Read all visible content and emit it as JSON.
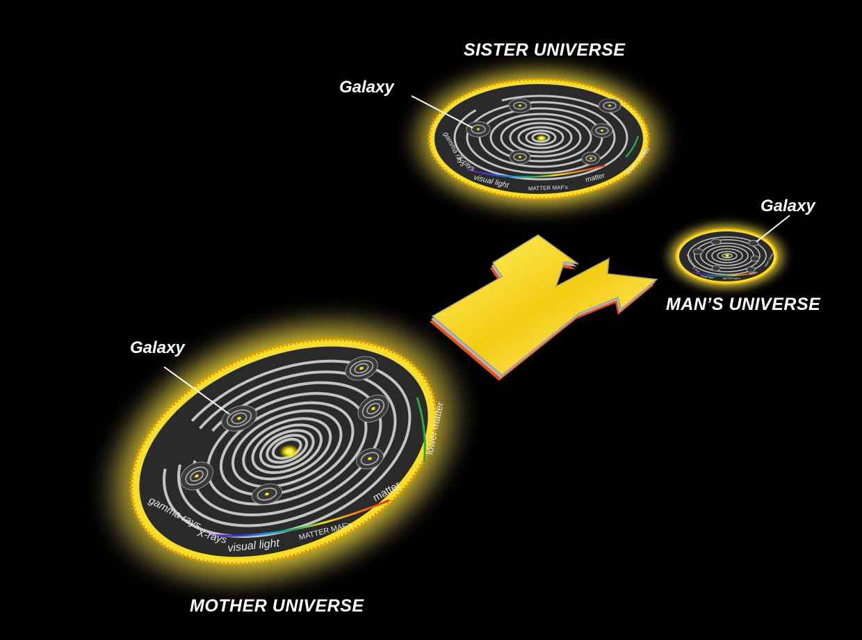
{
  "universes": {
    "mother": {
      "title": "MOTHER UNIVERSE",
      "galaxy_label": "Galaxy",
      "band_labels": {
        "gamma_rays": "gamma rays",
        "x_rays": "X-rays",
        "visual_light": "visual light",
        "matter_mafs": "MATTER MAF's",
        "matter": "matter",
        "lower_matter": "lower matter"
      }
    },
    "sister": {
      "title": "SISTER UNIVERSE",
      "galaxy_label": "Galaxy",
      "band_labels": {
        "gamma_rays": "gamma rays",
        "x_rays": "X-rays",
        "visual_light": "visual light",
        "matter_mafs": "MATTER MAF's",
        "matter": "matter",
        "lower_matter": "lower matter"
      }
    },
    "man": {
      "title": "MAN’S UNIVERSE",
      "galaxy_label": "Galaxy",
      "band_labels": {
        "gamma_rays": "gamma rays",
        "x_rays": "X-rays",
        "visual_light": "visual light",
        "matter_mafs": "MATTER MAF's",
        "matter": "matter",
        "lower_matter": "lower matter"
      }
    }
  },
  "colors": {
    "background": "#000000",
    "glow": "#f7e531",
    "rim": "#e8a000",
    "disc": "#2a2a2a",
    "ring": "#bdbdbd",
    "arrow": "#f2d21a",
    "arrow_edge": "#b5b5b5",
    "arrow_shadow": "#e2531b",
    "spectrum": [
      "#7a1fa2",
      "#2b3fd1",
      "#1aa0d8",
      "#2ca845",
      "#f2e11b",
      "#f08a1a",
      "#d8281e"
    ]
  }
}
